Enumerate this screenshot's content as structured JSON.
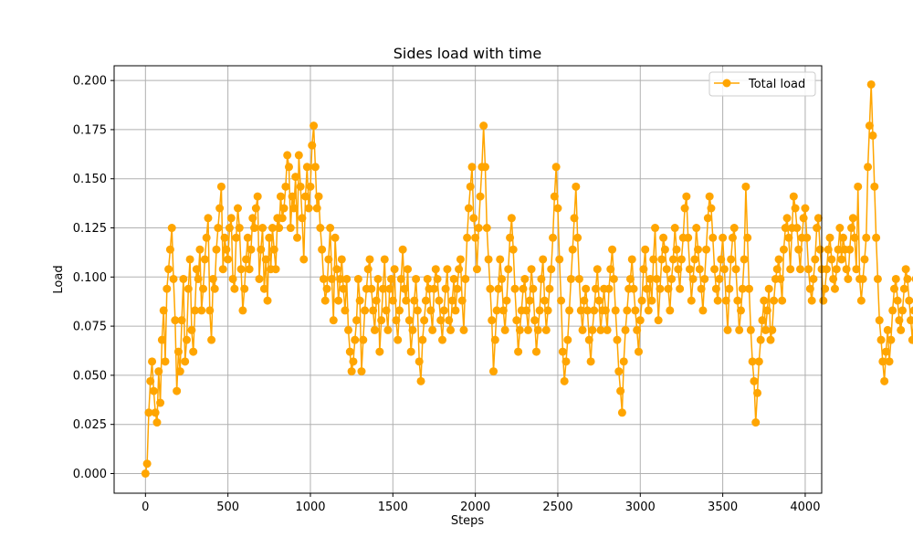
{
  "chart_data": {
    "type": "line",
    "title": "Sides load with time",
    "xlabel": "Steps",
    "ylabel": "Load",
    "xlim": [
      -190,
      4100
    ],
    "ylim": [
      -0.01,
      0.2075
    ],
    "xticks": [
      0,
      500,
      1000,
      1500,
      2000,
      2500,
      3000,
      3500,
      4000
    ],
    "xtick_labels": [
      "0",
      "500",
      "1000",
      "1500",
      "2000",
      "2500",
      "3000",
      "3500",
      "4000"
    ],
    "yticks": [
      0.0,
      0.025,
      0.05,
      0.075,
      0.1,
      0.125,
      0.15,
      0.175,
      0.2
    ],
    "ytick_labels": [
      "0.000",
      "0.025",
      "0.050",
      "0.075",
      "0.100",
      "0.125",
      "0.150",
      "0.175",
      "0.200"
    ],
    "grid": true,
    "legend_position": "top-right",
    "series": [
      {
        "name": "Total load",
        "color": "#ffa500",
        "marker": "circle",
        "step": 10,
        "x_start": 0,
        "y": [
          0.0,
          0.005,
          0.031,
          0.047,
          0.057,
          0.042,
          0.031,
          0.026,
          0.052,
          0.036,
          0.068,
          0.083,
          0.057,
          0.094,
          0.104,
          0.114,
          0.125,
          0.099,
          0.078,
          0.042,
          0.062,
          0.052,
          0.078,
          0.099,
          0.057,
          0.068,
          0.094,
          0.109,
          0.073,
          0.062,
          0.083,
          0.104,
          0.099,
          0.114,
          0.083,
          0.094,
          0.109,
          0.12,
          0.13,
          0.083,
          0.068,
          0.099,
          0.094,
          0.114,
          0.125,
          0.135,
          0.146,
          0.104,
          0.12,
          0.114,
          0.109,
          0.125,
          0.13,
          0.099,
          0.094,
          0.12,
          0.135,
          0.125,
          0.104,
          0.083,
          0.094,
          0.109,
          0.12,
          0.104,
          0.114,
          0.13,
          0.125,
          0.135,
          0.141,
          0.099,
          0.114,
          0.125,
          0.094,
          0.109,
          0.088,
          0.12,
          0.104,
          0.125,
          0.114,
          0.104,
          0.13,
          0.125,
          0.141,
          0.13,
          0.135,
          0.146,
          0.162,
          0.156,
          0.125,
          0.141,
          0.135,
          0.151,
          0.12,
          0.162,
          0.146,
          0.13,
          0.109,
          0.141,
          0.156,
          0.135,
          0.146,
          0.167,
          0.177,
          0.156,
          0.135,
          0.141,
          0.125,
          0.114,
          0.099,
          0.088,
          0.094,
          0.109,
          0.125,
          0.099,
          0.078,
          0.12,
          0.104,
          0.088,
          0.099,
          0.109,
          0.094,
          0.083,
          0.099,
          0.073,
          0.062,
          0.052,
          0.057,
          0.068,
          0.078,
          0.099,
          0.088,
          0.052,
          0.068,
          0.083,
          0.094,
          0.104,
          0.109,
          0.094,
          0.083,
          0.073,
          0.088,
          0.099,
          0.062,
          0.078,
          0.094,
          0.109,
          0.083,
          0.073,
          0.094,
          0.099,
          0.088,
          0.104,
          0.078,
          0.068,
          0.083,
          0.099,
          0.114,
          0.094,
          0.088,
          0.104,
          0.078,
          0.062,
          0.073,
          0.088,
          0.099,
          0.083,
          0.057,
          0.047,
          0.068,
          0.078,
          0.088,
          0.099,
          0.094,
          0.083,
          0.073,
          0.094,
          0.104,
          0.099,
          0.088,
          0.078,
          0.068,
          0.083,
          0.094,
          0.104,
          0.078,
          0.073,
          0.088,
          0.099,
          0.083,
          0.094,
          0.104,
          0.109,
          0.088,
          0.073,
          0.099,
          0.12,
          0.135,
          0.146,
          0.156,
          0.13,
          0.12,
          0.104,
          0.125,
          0.141,
          0.156,
          0.177,
          0.156,
          0.125,
          0.109,
          0.094,
          0.078,
          0.052,
          0.068,
          0.083,
          0.094,
          0.109,
          0.099,
          0.083,
          0.073,
          0.088,
          0.104,
          0.12,
          0.13,
          0.114,
          0.094,
          0.078,
          0.062,
          0.073,
          0.083,
          0.094,
          0.099,
          0.083,
          0.073,
          0.088,
          0.104,
          0.094,
          0.078,
          0.062,
          0.073,
          0.083,
          0.099,
          0.109,
          0.088,
          0.073,
          0.083,
          0.094,
          0.104,
          0.12,
          0.141,
          0.156,
          0.135,
          0.109,
          0.088,
          0.062,
          0.047,
          0.057,
          0.068,
          0.083,
          0.099,
          0.114,
          0.13,
          0.146,
          0.12,
          0.099,
          0.083,
          0.073,
          0.088,
          0.094,
          0.083,
          0.068,
          0.057,
          0.073,
          0.083,
          0.094,
          0.104,
          0.088,
          0.073,
          0.083,
          0.094,
          0.083,
          0.073,
          0.094,
          0.104,
          0.114,
          0.099,
          0.083,
          0.068,
          0.052,
          0.042,
          0.031,
          0.057,
          0.073,
          0.083,
          0.094,
          0.099,
          0.109,
          0.094,
          0.083,
          0.073,
          0.062,
          0.078,
          0.088,
          0.104,
          0.114,
          0.094,
          0.083,
          0.099,
          0.088,
          0.109,
          0.125,
          0.099,
          0.078,
          0.094,
          0.109,
          0.12,
          0.114,
          0.104,
          0.094,
          0.083,
          0.099,
          0.109,
          0.125,
          0.114,
          0.104,
          0.094,
          0.109,
          0.12,
          0.135,
          0.141,
          0.12,
          0.104,
          0.088,
          0.099,
          0.109,
          0.125,
          0.114,
          0.104,
          0.094,
          0.083,
          0.099,
          0.114,
          0.13,
          0.141,
          0.135,
          0.12,
          0.104,
          0.094,
          0.088,
          0.099,
          0.109,
          0.12,
          0.104,
          0.088,
          0.073,
          0.094,
          0.109,
          0.12,
          0.125,
          0.104,
          0.088,
          0.073,
          0.083,
          0.094,
          0.109,
          0.146,
          0.12,
          0.094,
          0.073,
          0.057,
          0.047,
          0.026,
          0.041,
          0.057,
          0.068,
          0.078,
          0.088,
          0.073,
          0.083,
          0.094,
          0.068,
          0.073,
          0.088,
          0.099,
          0.104,
          0.109,
          0.099,
          0.088,
          0.114,
          0.125,
          0.13,
          0.12,
          0.104,
          0.125,
          0.141,
          0.135,
          0.125,
          0.114,
          0.104,
          0.12,
          0.13,
          0.135,
          0.12,
          0.104,
          0.094,
          0.088,
          0.099,
          0.109,
          0.125,
          0.13,
          0.114,
          0.104,
          0.088,
          0.094,
          0.104,
          0.114,
          0.12,
          0.109,
          0.099,
          0.094,
          0.104,
          0.114,
          0.125,
          0.109,
          0.12,
          0.114,
          0.104,
          0.099,
          0.114,
          0.125,
          0.13,
          0.12,
          0.104,
          0.146,
          0.099,
          0.088,
          0.099,
          0.109,
          0.12,
          0.156,
          0.177,
          0.198,
          0.172,
          0.146,
          0.12,
          0.099,
          0.078,
          0.068,
          0.057,
          0.047,
          0.062,
          0.073,
          0.057,
          0.068,
          0.083,
          0.094,
          0.099,
          0.088,
          0.078,
          0.073,
          0.083,
          0.094,
          0.104,
          0.099,
          0.088,
          0.078,
          0.068,
          0.083,
          0.099,
          0.12,
          0.151,
          0.167,
          0.141,
          0.12,
          0.104,
          0.088,
          0.073,
          0.083,
          0.094,
          0.099,
          0.109,
          0.083,
          0.068,
          0.078,
          0.099,
          0.12,
          0.151,
          0.135,
          0.104,
          0.083,
          0.062,
          0.047,
          0.036,
          0.057,
          0.073,
          0.083,
          0.094,
          0.073,
          0.062,
          0.078,
          0.094,
          0.104,
          0.099,
          0.088,
          0.078,
          0.094,
          0.12,
          0.104,
          0.088,
          0.073,
          0.083,
          0.094,
          0.104,
          0.109,
          0.099,
          0.083,
          0.073,
          0.088,
          0.099,
          0.109,
          0.094,
          0.083,
          0.073,
          0.083,
          0.104,
          0.125,
          0.146,
          0.12,
          0.094,
          0.078,
          0.062,
          0.052,
          0.041,
          0.052,
          0.068,
          0.083,
          0.094,
          0.104,
          0.083,
          0.068,
          0.057,
          0.047,
          0.036,
          0.031,
          0.047,
          0.057,
          0.068,
          0.078,
          0.094,
          0.104,
          0.12,
          0.13,
          0.114,
          0.104,
          0.099,
          0.109,
          0.12,
          0.13,
          0.114,
          0.104,
          0.109,
          0.12,
          0.13,
          0.141,
          0.156,
          0.162,
          0.135,
          0.114,
          0.099,
          0.088,
          0.104,
          0.114,
          0.12,
          0.109,
          0.099,
          0.088,
          0.104,
          0.12,
          0.13,
          0.114,
          0.099,
          0.083,
          0.073,
          0.062,
          0.083,
          0.094,
          0.104,
          0.114,
          0.099,
          0.088,
          0.057,
          0.073,
          0.088,
          0.099,
          0.109,
          0.094,
          0.083,
          0.099,
          0.114,
          0.104,
          0.094,
          0.083,
          0.078,
          0.088,
          0.099,
          0.109,
          0.099,
          0.094,
          0.088,
          0.094,
          0.099,
          0.094,
          0.088,
          0.094,
          0.099
        ]
      }
    ]
  }
}
